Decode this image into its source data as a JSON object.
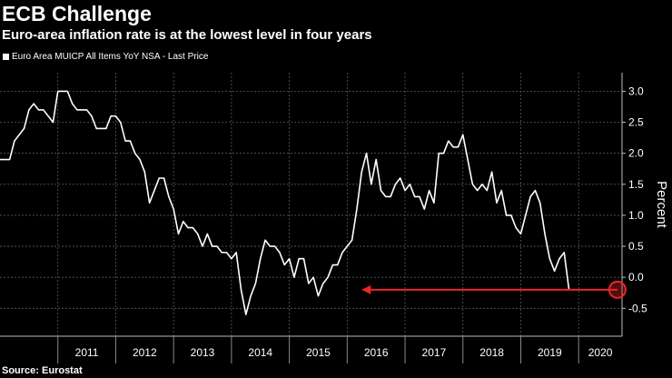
{
  "chart_data": {
    "type": "line",
    "title": "ECB Challenge",
    "subtitle": "Euro-area inflation rate is at the lowest level in four years",
    "legend": [
      {
        "label": "Euro Area MUICP All Items YoY NSA - Last Price",
        "color": "#ffffff"
      }
    ],
    "source": "Source: Eurostat",
    "ylabel": "Percent",
    "ylim": [
      -0.95,
      3.3
    ],
    "y_ticks": [
      3.0,
      2.5,
      2.0,
      1.5,
      1.0,
      0.5,
      0.0,
      -0.5
    ],
    "y_tick_labels": [
      "3.0",
      "2.5",
      "2.0",
      "1.5",
      "1.0",
      "0.5",
      "0.0",
      "-0.5"
    ],
    "xlim": [
      2010.0,
      2020.75
    ],
    "x_ticks": [
      2011,
      2012,
      2013,
      2014,
      2015,
      2016,
      2017,
      2018,
      2019,
      2020
    ],
    "x_tick_labels": [
      "2011",
      "2012",
      "2013",
      "2014",
      "2015",
      "2016",
      "2017",
      "2018",
      "2019",
      "2020"
    ],
    "series": [
      {
        "name": "Euro Area MUICP All Items YoY NSA - Last Price",
        "color": "#ffffff",
        "start": 2010.0,
        "step": 0.08333,
        "values": [
          1.9,
          1.9,
          1.9,
          2.2,
          2.3,
          2.4,
          2.7,
          2.8,
          2.7,
          2.7,
          2.6,
          2.5,
          3.0,
          3.0,
          3.0,
          2.8,
          2.7,
          2.7,
          2.7,
          2.6,
          2.4,
          2.4,
          2.4,
          2.6,
          2.6,
          2.5,
          2.2,
          2.2,
          2.0,
          1.9,
          1.7,
          1.2,
          1.4,
          1.6,
          1.6,
          1.3,
          1.1,
          0.7,
          0.9,
          0.8,
          0.8,
          0.7,
          0.5,
          0.7,
          0.5,
          0.5,
          0.4,
          0.4,
          0.3,
          0.4,
          -0.2,
          -0.6,
          -0.3,
          -0.1,
          0.3,
          0.6,
          0.5,
          0.5,
          0.4,
          0.2,
          0.3,
          0.0,
          0.3,
          0.3,
          -0.1,
          0.0,
          -0.3,
          -0.1,
          0.0,
          0.2,
          0.2,
          0.4,
          0.5,
          0.6,
          1.1,
          1.7,
          2.0,
          1.5,
          1.9,
          1.4,
          1.3,
          1.3,
          1.5,
          1.6,
          1.4,
          1.5,
          1.3,
          1.3,
          1.1,
          1.4,
          1.2,
          2.0,
          2.0,
          2.2,
          2.1,
          2.1,
          2.3,
          1.9,
          1.5,
          1.4,
          1.5,
          1.4,
          1.7,
          1.2,
          1.4,
          1.0,
          1.0,
          0.8,
          0.7,
          1.0,
          1.3,
          1.4,
          1.2,
          0.7,
          0.3,
          0.1,
          0.3,
          0.4,
          -0.2
        ]
      }
    ],
    "annotations": [
      {
        "type": "arrow",
        "from": {
          "x": 2020.67,
          "y": -0.2
        },
        "to": {
          "x": 2016.25,
          "y": -0.2
        },
        "color": "#e8262b"
      },
      {
        "type": "circle",
        "at": {
          "x": 2020.67,
          "y": -0.2
        },
        "color": "#e8262b"
      }
    ]
  }
}
